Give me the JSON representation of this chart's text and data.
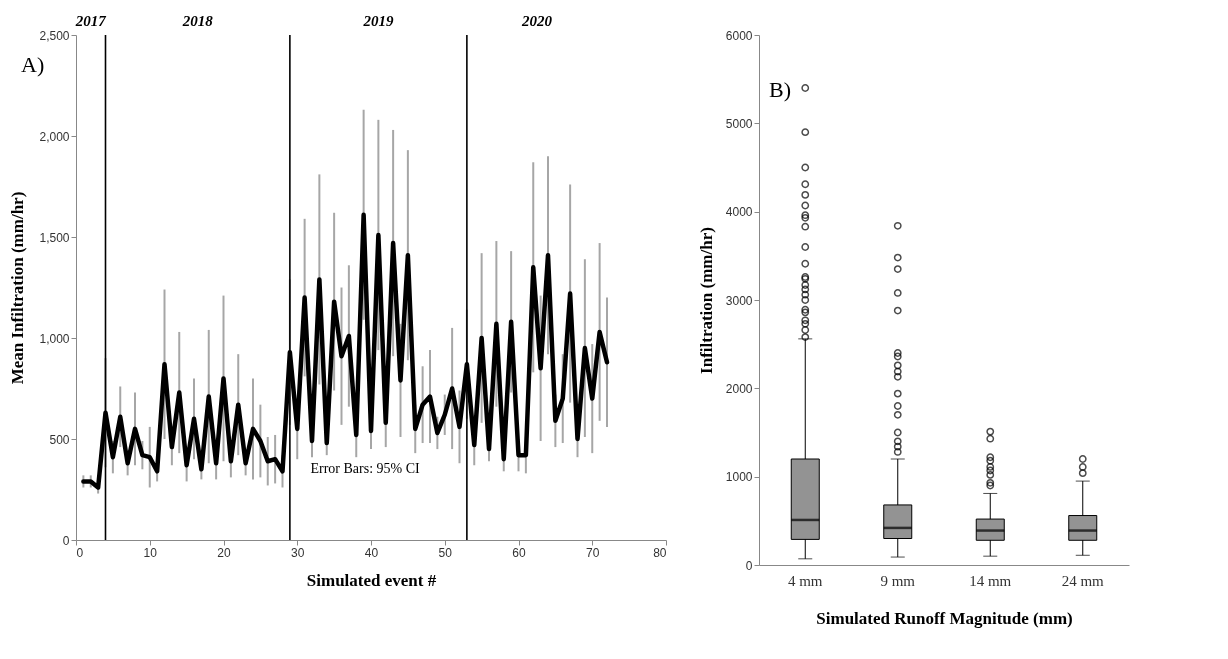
{
  "chart_data": [
    {
      "type": "line",
      "title": "A)",
      "xlabel": "Simulated event #",
      "ylabel": "Mean Infiltration (mm/hr)",
      "x": [
        1,
        2,
        3,
        4,
        5,
        6,
        7,
        8,
        9,
        10,
        11,
        12,
        13,
        14,
        15,
        16,
        17,
        18,
        19,
        20,
        21,
        22,
        23,
        24,
        25,
        26,
        27,
        28,
        29,
        30,
        31,
        32,
        33,
        34,
        35,
        36,
        37,
        38,
        39,
        40,
        41,
        42,
        43,
        44,
        45,
        46,
        47,
        48,
        49,
        50,
        51,
        52,
        53,
        54,
        55,
        56,
        57,
        58,
        59,
        60,
        61,
        62,
        63,
        64,
        65,
        66,
        67,
        68,
        69,
        70,
        71,
        72
      ],
      "series": [
        {
          "color": "#000000",
          "values": [
            290,
            290,
            260,
            630,
            410,
            610,
            380,
            550,
            420,
            410,
            340,
            870,
            460,
            730,
            370,
            600,
            350,
            710,
            380,
            800,
            390,
            670,
            380,
            550,
            490,
            390,
            400,
            340,
            930,
            550,
            1200,
            490,
            1290,
            480,
            1180,
            910,
            1010,
            520,
            1610,
            540,
            1510,
            580,
            1470,
            790,
            1410,
            550,
            670,
            710,
            530,
            620,
            750,
            560,
            870,
            470,
            1000,
            450,
            1070,
            400,
            1080,
            420,
            420,
            1350,
            850,
            1410,
            590,
            700,
            1220,
            500,
            950,
            700,
            1030,
            880
          ],
          "errors": [
            30,
            30,
            30,
            270,
            80,
            150,
            60,
            180,
            70,
            150,
            50,
            370,
            90,
            300,
            80,
            200,
            50,
            330,
            80,
            410,
            80,
            250,
            60,
            250,
            180,
            120,
            120,
            80,
            360,
            150,
            390,
            80,
            520,
            60,
            440,
            340,
            350,
            110,
            520,
            90,
            570,
            120,
            560,
            280,
            520,
            120,
            190,
            230,
            80,
            100,
            300,
            180,
            270,
            100,
            420,
            60,
            410,
            60,
            350,
            80,
            90,
            520,
            360,
            490,
            130,
            220,
            540,
            90,
            440,
            270,
            440,
            320
          ]
        }
      ],
      "xlim": [
        0,
        80
      ],
      "xticks": [
        {
          "value": 0,
          "label": "0"
        },
        10,
        20,
        30,
        40,
        50,
        60,
        70,
        80
      ],
      "ylim": [
        0,
        2500
      ],
      "yticks": [
        {
          "value": 0,
          "label": "0"
        },
        500,
        {
          "value": 1000,
          "label": "1,000"
        },
        {
          "value": 1500,
          "label": "1,500"
        },
        {
          "value": 2000,
          "label": "2,000"
        },
        {
          "value": 2500,
          "label": "2,500"
        }
      ],
      "ref_lines": [
        {
          "axis": "x",
          "value": 4,
          "color": "#000000"
        },
        {
          "axis": "x",
          "value": 29,
          "color": "#000000"
        },
        {
          "axis": "x",
          "value": 53,
          "color": "#000000"
        }
      ],
      "annotations": [
        "2017",
        "2018",
        "2019",
        "2020",
        "Error Bars: 95% CI"
      ]
    },
    {
      "type": "box",
      "title": "B)",
      "xlabel": "Simulated Runoff Magnitude (mm)",
      "ylabel": "Infiltration (mm/hr)",
      "categories": [
        "4 mm",
        "9 mm",
        "14 mm",
        "24 mm"
      ],
      "series": [
        {
          "color": "#939393",
          "boxes": [
            {
              "low": 70,
              "q1": 290,
              "median": 510,
              "q3": 1200,
              "high": 2560,
              "outliers": [
                2580,
                2660,
                2730,
                2770,
                2860,
                2890,
                3000,
                3060,
                3120,
                3170,
                3240,
                3260,
                3410,
                3600,
                3830,
                3930,
                3960,
                4070,
                4190,
                4310,
                4500,
                4900,
                5400
              ]
            },
            {
              "low": 90,
              "q1": 300,
              "median": 420,
              "q3": 680,
              "high": 1200,
              "outliers": [
                1280,
                1340,
                1400,
                1500,
                1700,
                1800,
                1940,
                2130,
                2190,
                2260,
                2360,
                2400,
                2880,
                3080,
                3350,
                3480,
                3840
              ]
            },
            {
              "low": 100,
              "q1": 280,
              "median": 390,
              "q3": 520,
              "high": 810,
              "outliers": [
                900,
                930,
                1020,
                1070,
                1110,
                1180,
                1220,
                1430,
                1510
              ]
            },
            {
              "low": 110,
              "q1": 280,
              "median": 390,
              "q3": 560,
              "high": 950,
              "outliers": [
                1040,
                1110,
                1200
              ]
            }
          ]
        }
      ],
      "ylim": [
        0,
        6000
      ],
      "yticks": [
        {
          "value": 0,
          "label": "0"
        },
        {
          "value": 1000,
          "label": "1000"
        },
        {
          "value": 2000,
          "label": "2000"
        },
        {
          "value": 3000,
          "label": "3000"
        },
        {
          "value": 4000,
          "label": "4000"
        },
        {
          "value": 5000,
          "label": "5000"
        },
        {
          "value": 6000,
          "label": "6000"
        }
      ]
    }
  ]
}
